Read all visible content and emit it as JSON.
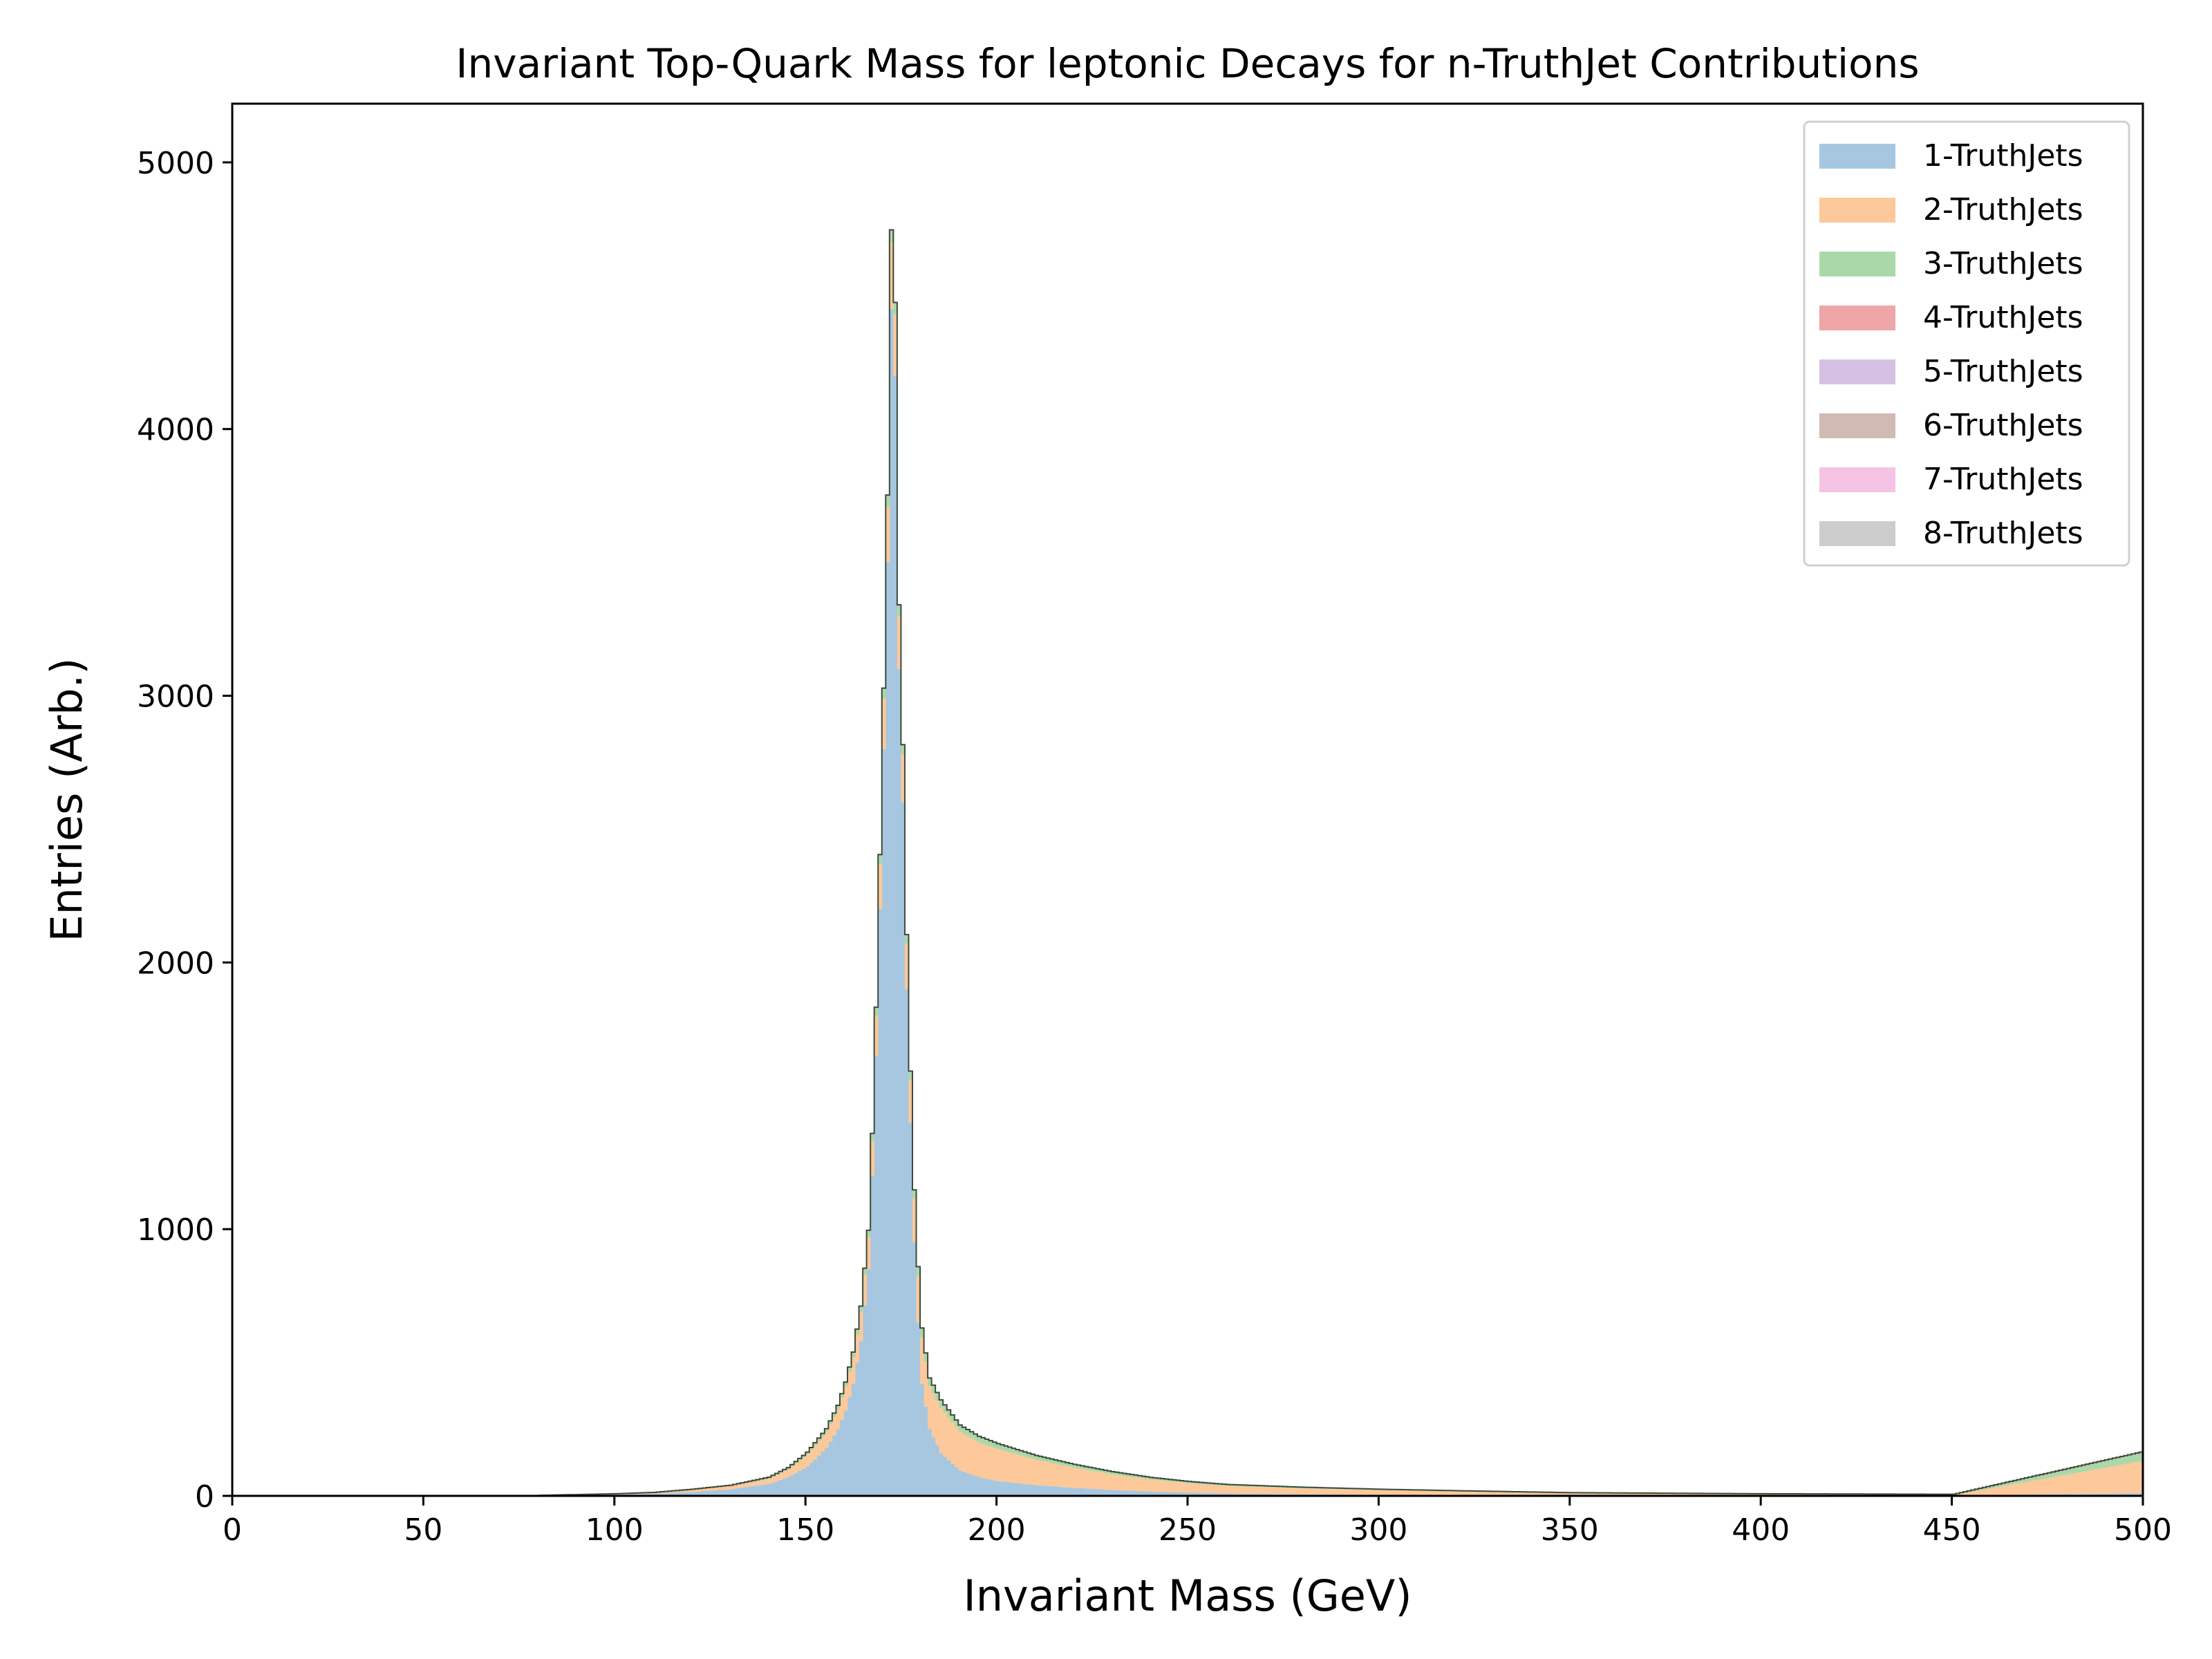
{
  "chart_data": {
    "type": "histogram-stacked",
    "title": "Invariant Top-Quark Mass for leptonic Decays for n-TruthJet Contributions",
    "xlabel": "Invariant Mass (GeV)",
    "ylabel": "Entries (Arb.)",
    "xlim": [
      0,
      500
    ],
    "ylim": [
      0,
      5220
    ],
    "xticks": [
      "0",
      "50",
      "100",
      "150",
      "200",
      "250",
      "300",
      "350",
      "400",
      "450",
      "500"
    ],
    "yticks": [
      "0",
      "1000",
      "2000",
      "3000",
      "4000",
      "5000"
    ],
    "legend_position": "top-right",
    "grid": false,
    "bin_width": 1,
    "colors": {
      "1-TruthJets": "#a6c7df",
      "2-TruthJets": "#fdc89a",
      "3-TruthJets": "#aad8a8",
      "4-TruthJets": "#eea6a6",
      "5-TruthJets": "#d4c1e3",
      "6-TruthJets": "#d1b9b4",
      "7-TruthJets": "#f5c4e4",
      "8-TruthJets": "#cccccc",
      "outline": "#3a4a3a"
    },
    "series": [
      {
        "name": "1-TruthJets",
        "x": [
          80,
          100,
          110,
          120,
          130,
          140,
          145,
          150,
          155,
          158,
          160,
          162,
          164,
          166,
          167,
          168,
          169,
          170,
          171,
          172,
          173,
          174,
          175,
          176,
          177,
          178,
          179,
          180,
          182,
          185,
          190,
          195,
          200,
          210,
          220,
          230,
          240,
          250,
          260,
          280,
          300,
          320,
          350,
          400,
          450,
          499,
          500
        ],
        "values": [
          2,
          5,
          8,
          15,
          25,
          45,
          70,
          110,
          180,
          250,
          320,
          420,
          580,
          850,
          1200,
          1650,
          2200,
          2800,
          3500,
          4450,
          4200,
          3100,
          2600,
          1900,
          1400,
          950,
          650,
          420,
          250,
          160,
          95,
          70,
          55,
          40,
          30,
          22,
          16,
          12,
          9,
          6,
          4,
          3,
          2,
          1,
          1,
          10,
          0
        ]
      },
      {
        "name": "2-TruthJets",
        "x": [
          80,
          100,
          110,
          120,
          130,
          140,
          145,
          150,
          155,
          158,
          160,
          162,
          164,
          166,
          167,
          168,
          169,
          170,
          171,
          172,
          173,
          174,
          175,
          176,
          177,
          178,
          179,
          180,
          182,
          185,
          190,
          195,
          200,
          210,
          220,
          230,
          240,
          250,
          260,
          280,
          300,
          320,
          350,
          400,
          450,
          499,
          500
        ],
        "values": [
          0,
          2,
          4,
          8,
          12,
          20,
          30,
          45,
          60,
          75,
          90,
          100,
          110,
          120,
          130,
          150,
          170,
          190,
          210,
          250,
          230,
          200,
          180,
          170,
          160,
          165,
          175,
          175,
          160,
          170,
          145,
          130,
          120,
          95,
          75,
          58,
          45,
          35,
          28,
          22,
          18,
          14,
          8,
          4,
          2,
          120,
          0
        ]
      },
      {
        "name": "3-TruthJets",
        "x": [
          80,
          100,
          110,
          120,
          130,
          140,
          145,
          150,
          155,
          158,
          160,
          162,
          164,
          166,
          167,
          168,
          169,
          170,
          171,
          172,
          173,
          174,
          175,
          176,
          177,
          178,
          179,
          180,
          182,
          185,
          190,
          195,
          200,
          210,
          220,
          230,
          240,
          250,
          260,
          280,
          300,
          320,
          350,
          400,
          450,
          499,
          500
        ],
        "values": [
          0,
          1,
          1,
          2,
          3,
          5,
          6,
          8,
          10,
          12,
          14,
          16,
          18,
          22,
          25,
          28,
          30,
          34,
          38,
          42,
          40,
          36,
          32,
          30,
          28,
          28,
          30,
          30,
          28,
          26,
          22,
          20,
          18,
          14,
          11,
          9,
          7,
          6,
          5,
          4,
          3,
          2,
          1,
          1,
          0,
          30,
          0
        ]
      },
      {
        "name": "4-TruthJets",
        "x": [
          150,
          172,
          200,
          250,
          300,
          499
        ],
        "values": [
          1,
          4,
          2,
          1,
          0,
          3
        ]
      },
      {
        "name": "5-TruthJets",
        "x": [
          150,
          172,
          200,
          250,
          300,
          499
        ],
        "values": [
          0,
          1,
          1,
          0,
          0,
          1
        ]
      },
      {
        "name": "6-TruthJets",
        "x": [
          172,
          499
        ],
        "values": [
          0,
          0
        ]
      },
      {
        "name": "7-TruthJets",
        "x": [
          172,
          499
        ],
        "values": [
          0,
          0
        ]
      },
      {
        "name": "8-TruthJets",
        "x": [
          172,
          499
        ],
        "values": [
          0,
          0
        ]
      }
    ]
  }
}
